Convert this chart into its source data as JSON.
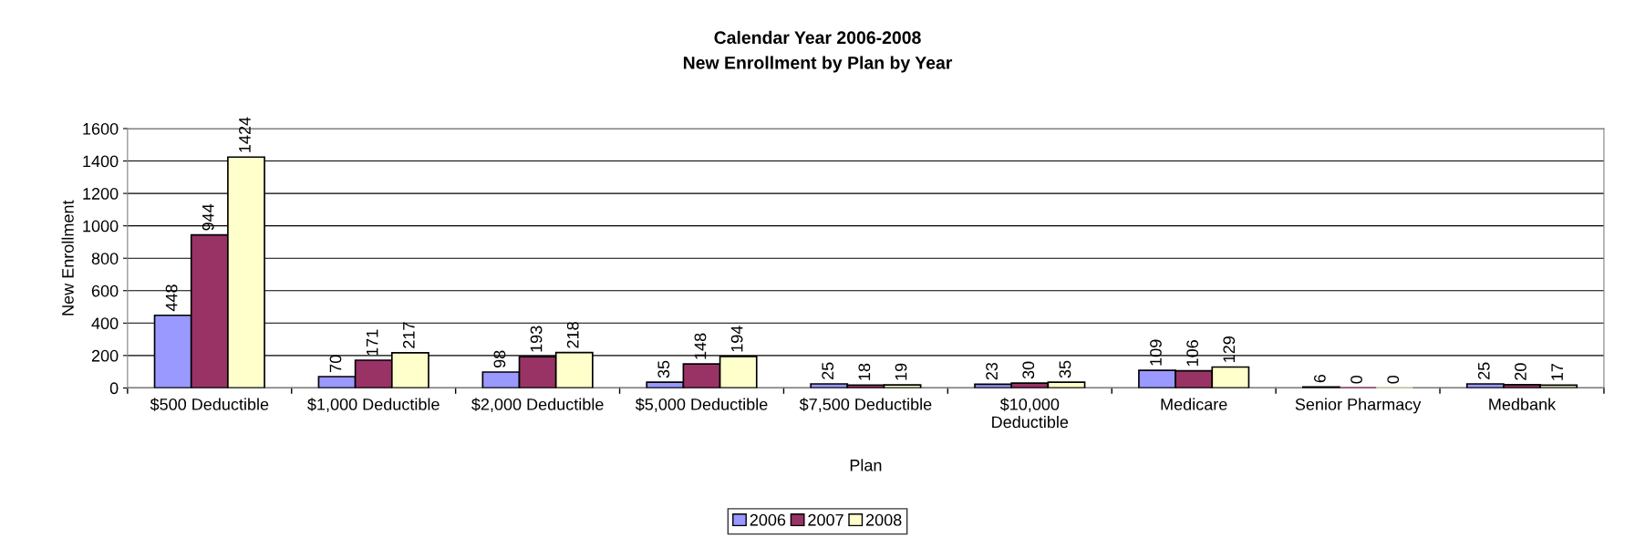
{
  "chart_data": {
    "type": "bar",
    "title": "Calendar Year 2006-2008",
    "subtitle": "New Enrollment by Plan by Year",
    "xlabel": "Plan",
    "ylabel": "New Enrollment",
    "categories": [
      "$500 Deductible",
      "$1,000 Deductible",
      "$2,000 Deductible",
      "$5,000 Deductible",
      "$7,500 Deductible",
      "$10,000\nDeductible",
      "Medicare",
      "Senior Pharmacy",
      "Medbank"
    ],
    "series": [
      {
        "name": "2006",
        "color": "#9999ff",
        "values": [
          448,
          70,
          98,
          35,
          25,
          23,
          109,
          6,
          25
        ]
      },
      {
        "name": "2007",
        "color": "#993366",
        "values": [
          944,
          171,
          193,
          148,
          18,
          30,
          106,
          0,
          20
        ]
      },
      {
        "name": "2008",
        "color": "#ffffcc",
        "values": [
          1424,
          217,
          218,
          194,
          19,
          35,
          129,
          0,
          17
        ]
      }
    ],
    "ylim": [
      0,
      1600
    ],
    "yticks": [
      0,
      200,
      400,
      600,
      800,
      1000,
      1200,
      1400,
      1600
    ],
    "grid": "y",
    "legend": "bottom",
    "data_labels": true
  }
}
